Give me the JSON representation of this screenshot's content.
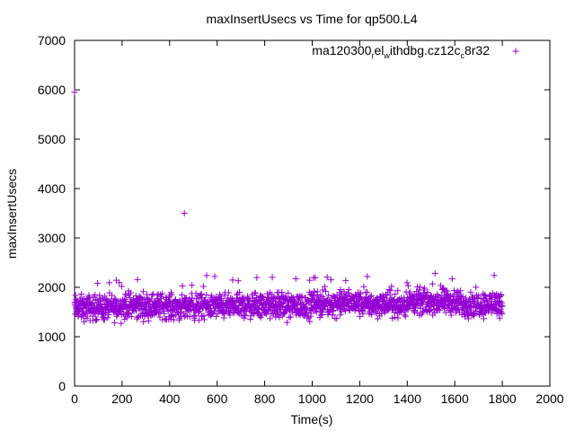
{
  "chart_data": {
    "type": "scatter",
    "title": "maxInsertUsecs vs Time for qp500.L4",
    "xlabel": "Time(s)",
    "ylabel": "maxInsertUsecs",
    "xlim": [
      0,
      2000
    ],
    "ylim": [
      0,
      7000
    ],
    "x_ticks": [
      "0",
      "200",
      "400",
      "600",
      "800",
      "1000",
      "1200",
      "1400",
      "1600",
      "1800",
      "2000"
    ],
    "y_ticks": [
      "0",
      "1000",
      "2000",
      "3000",
      "4000",
      "5000",
      "6000",
      "7000"
    ],
    "grid": false,
    "legend_position": "top-right",
    "marker": "plus",
    "series": [
      {
        "name": "ma120300_rel_withdbg.cz12c_c8r32",
        "legend_parts": {
          "a": "ma120300",
          "b": "r",
          "c": "el",
          "d": "w",
          "e": "ithdbg.cz12c",
          "f": "c",
          "g": "8r32"
        },
        "color": "#9400d3",
        "notable_points": [
          {
            "x": 0,
            "y": 5950
          },
          {
            "x": 462,
            "y": 3500
          }
        ],
        "distribution": {
          "x_start": 0,
          "x_end": 1800,
          "x_step": 1,
          "typical_min": 1250,
          "typical_max": 2000,
          "center": 1620,
          "occasional_max": 2300
        },
        "bands": [
          {
            "x_from": 0,
            "x_to": 200,
            "center": 1580
          },
          {
            "x_from": 200,
            "x_to": 400,
            "center": 1620
          },
          {
            "x_from": 400,
            "x_to": 600,
            "center": 1600
          },
          {
            "x_from": 600,
            "x_to": 800,
            "center": 1620
          },
          {
            "x_from": 800,
            "x_to": 1000,
            "center": 1620
          },
          {
            "x_from": 1000,
            "x_to": 1200,
            "center": 1680
          },
          {
            "x_from": 1200,
            "x_to": 1400,
            "center": 1650
          },
          {
            "x_from": 1400,
            "x_to": 1600,
            "center": 1700
          },
          {
            "x_from": 1600,
            "x_to": 1800,
            "center": 1660
          }
        ]
      }
    ]
  }
}
